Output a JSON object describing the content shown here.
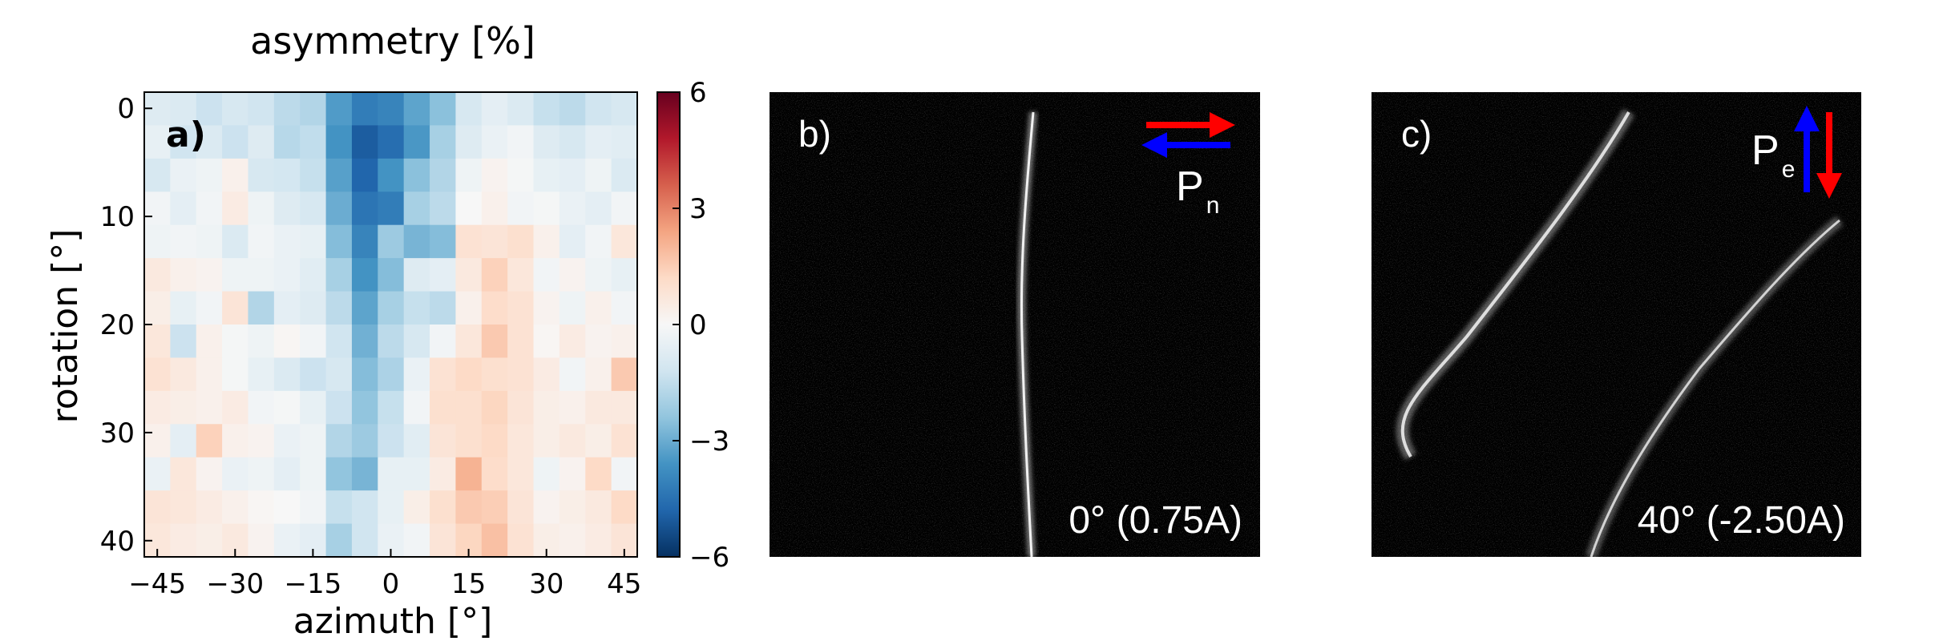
{
  "chart_data": [
    {
      "type": "heatmap",
      "panel_label": "a)",
      "title": "",
      "xlabel": "azimuth [°]",
      "ylabel": "rotation [°]",
      "colorbar_label": "asymmetry [%]",
      "colormap": "RdBu_r",
      "clim": [
        -6,
        6
      ],
      "x_tick_values": [
        -45,
        -30,
        -15,
        0,
        15,
        30,
        45
      ],
      "x_tick_labels": [
        "−45",
        "−30",
        "−15",
        "0",
        "15",
        "30",
        "45"
      ],
      "y_tick_values": [
        0,
        10,
        20,
        30,
        40
      ],
      "y_tick_labels": [
        "0",
        "10",
        "20",
        "30",
        "40"
      ],
      "colorbar_tick_values": [
        6,
        3,
        0,
        -3,
        -6
      ],
      "colorbar_tick_labels": [
        "6",
        "3",
        "0",
        "−3",
        "−6"
      ],
      "xlim": [
        -47.5,
        47.5
      ],
      "ylim": [
        41.5,
        -1.5
      ],
      "x": [
        -45,
        -40,
        -35,
        -30,
        -25,
        -20,
        -15,
        -10,
        -5,
        0,
        5,
        10,
        15,
        20,
        25,
        30,
        35,
        40,
        45
      ],
      "y": [
        0,
        3,
        6,
        9,
        12,
        15,
        18,
        21,
        24,
        27,
        30,
        33,
        36,
        39
      ],
      "values": [
        [
          -0.8,
          -0.9,
          -1.3,
          -1.0,
          -1.2,
          -1.6,
          -1.8,
          -3.4,
          -4.2,
          -4.0,
          -3.2,
          -2.5,
          -1.0,
          -0.6,
          -0.9,
          -1.4,
          -1.6,
          -1.2,
          -1.0
        ],
        [
          -0.5,
          -1.2,
          -0.9,
          -1.3,
          -0.8,
          -1.7,
          -1.5,
          -3.6,
          -5.0,
          -4.6,
          -3.5,
          -2.0,
          -0.8,
          -0.4,
          -0.2,
          -0.8,
          -1.0,
          -0.6,
          -0.7
        ],
        [
          -1.0,
          -0.4,
          -0.3,
          0.3,
          -1.0,
          -1.1,
          -1.4,
          -3.3,
          -4.8,
          -3.6,
          -2.5,
          -1.8,
          -0.3,
          0.2,
          -0.1,
          -0.5,
          -0.6,
          -0.3,
          -0.9
        ],
        [
          -0.2,
          -0.6,
          -0.2,
          0.5,
          -0.3,
          -0.8,
          -1.0,
          -3.0,
          -4.4,
          -4.2,
          -2.0,
          -1.6,
          0.0,
          0.3,
          -0.2,
          -0.1,
          -0.4,
          -0.6,
          -0.2
        ],
        [
          -0.3,
          -0.2,
          -0.3,
          -0.9,
          -0.2,
          -0.4,
          -0.5,
          -2.6,
          -4.0,
          -2.2,
          -2.8,
          -2.6,
          0.9,
          0.8,
          1.0,
          0.3,
          -0.6,
          -0.2,
          0.7
        ],
        [
          0.6,
          0.3,
          0.2,
          -0.3,
          -0.3,
          -0.4,
          -0.7,
          -2.0,
          -3.6,
          -2.6,
          -0.8,
          -0.6,
          0.6,
          1.4,
          0.7,
          -0.2,
          0.2,
          -0.3,
          -0.5
        ],
        [
          0.4,
          -0.5,
          -0.2,
          0.8,
          -1.8,
          -0.6,
          -0.8,
          -1.6,
          -3.2,
          -2.0,
          -1.4,
          -1.6,
          0.3,
          1.1,
          0.9,
          0.2,
          -0.3,
          0.3,
          -0.2
        ],
        [
          0.7,
          -1.3,
          0.3,
          -0.1,
          -0.3,
          0.1,
          -0.2,
          -1.2,
          -2.9,
          -1.6,
          -1.0,
          -0.2,
          0.7,
          1.6,
          0.9,
          0.1,
          0.5,
          0.2,
          0.3
        ],
        [
          0.9,
          0.6,
          0.3,
          -0.1,
          -0.5,
          -0.9,
          -1.3,
          -1.0,
          -2.6,
          -1.9,
          -0.4,
          0.9,
          1.2,
          1.0,
          0.9,
          0.5,
          -0.2,
          0.3,
          1.6
        ],
        [
          0.5,
          0.4,
          0.3,
          0.5,
          -0.2,
          -0.1,
          -0.5,
          -1.3,
          -2.4,
          -1.4,
          -0.2,
          1.0,
          1.0,
          1.3,
          0.8,
          0.4,
          0.3,
          0.6,
          0.6
        ],
        [
          0.3,
          -0.6,
          1.4,
          0.3,
          0.2,
          -0.4,
          -0.3,
          -1.8,
          -2.2,
          -1.3,
          -0.7,
          0.8,
          1.0,
          1.2,
          0.7,
          0.4,
          0.6,
          0.4,
          0.9
        ],
        [
          -0.4,
          0.7,
          0.2,
          -0.4,
          -0.3,
          -0.6,
          -0.3,
          -2.4,
          -2.8,
          -0.5,
          -0.5,
          0.5,
          2.1,
          1.1,
          0.7,
          -0.3,
          0.2,
          1.2,
          -0.2
        ],
        [
          0.8,
          0.7,
          0.5,
          0.3,
          0.1,
          0.0,
          -0.2,
          -1.4,
          -1.2,
          -0.5,
          0.4,
          1.0,
          1.6,
          1.5,
          0.8,
          0.2,
          0.4,
          0.6,
          1.2
        ],
        [
          0.7,
          0.5,
          0.4,
          0.6,
          0.2,
          -0.4,
          -0.6,
          -2.0,
          -1.2,
          -0.4,
          -0.2,
          0.8,
          1.3,
          1.8,
          0.9,
          0.4,
          0.3,
          0.5,
          0.8
        ]
      ]
    },
    {
      "type": "image",
      "panel_label": "b)",
      "annotation": "0° (0.75A)",
      "polarization_symbol": "P",
      "polarization_subscript": "n",
      "arrow_colors": [
        "#ff0000",
        "#0000ff"
      ]
    },
    {
      "type": "image",
      "panel_label": "c)",
      "annotation": "40° (-2.50A)",
      "polarization_symbol": "P",
      "polarization_subscript": "e",
      "arrow_colors": [
        "#0000ff",
        "#ff0000"
      ]
    }
  ]
}
